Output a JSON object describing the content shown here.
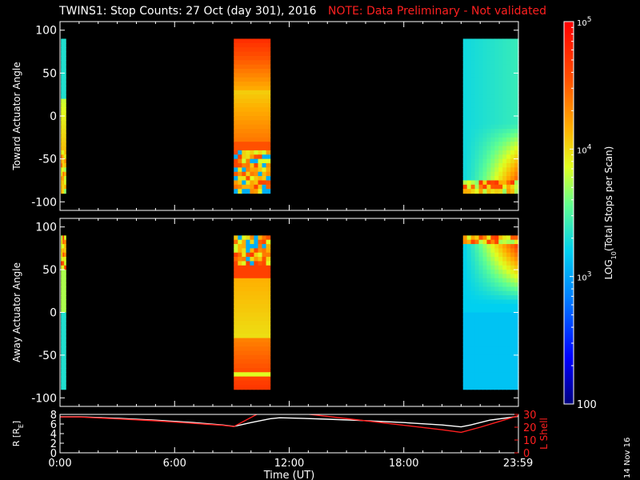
{
  "title": {
    "main": "TWINS1: Stop Counts: 27 Oct (day 301), 2016",
    "note": "NOTE: Data Preliminary - Not validated"
  },
  "footer_date": "14 Nov 16",
  "colors": {
    "background": "#000000",
    "axes": "#ffffff",
    "note": "#ff2020",
    "lshell_line": "#ff2020",
    "radius_line": "#ffffff"
  },
  "chart_data": [
    {
      "type": "heatmap",
      "panel": "toward",
      "ylabel": "Toward Actuator Angle",
      "xlim": [
        0,
        24
      ],
      "ylim": [
        -110,
        110
      ],
      "yticks": [
        -100,
        -50,
        0,
        50,
        100
      ],
      "data_blocks": [
        {
          "t_start": 0.05,
          "t_end": 0.3,
          "a_min": -90,
          "a_max": 90,
          "profile": "edge_toward"
        },
        {
          "t_start": 9.1,
          "t_end": 11.0,
          "a_min": -90,
          "a_max": 90,
          "profile": "mid_toward"
        },
        {
          "t_start": 21.1,
          "t_end": 24.0,
          "a_min": -90,
          "a_max": 90,
          "profile": "late_toward"
        }
      ]
    },
    {
      "type": "heatmap",
      "panel": "away",
      "ylabel": "Away Actuator Angle",
      "xlim": [
        0,
        24
      ],
      "ylim": [
        -110,
        110
      ],
      "yticks": [
        -100,
        -50,
        0,
        50,
        100
      ],
      "data_blocks": [
        {
          "t_start": 0.05,
          "t_end": 0.3,
          "a_min": -90,
          "a_max": 90,
          "profile": "edge_away"
        },
        {
          "t_start": 9.1,
          "t_end": 11.0,
          "a_min": -90,
          "a_max": 90,
          "profile": "mid_away"
        },
        {
          "t_start": 21.1,
          "t_end": 24.0,
          "a_min": -90,
          "a_max": 90,
          "profile": "late_away"
        }
      ]
    },
    {
      "type": "line",
      "panel": "orbit",
      "ylabel_left": "R [R",
      "ylabel_left_sub": "E",
      "ylabel_left_tail": "]",
      "ylabel_right": "L Shell",
      "xlabel": "Time (UT)",
      "xlim": [
        0,
        24
      ],
      "ylim_left": [
        0,
        8
      ],
      "yticks_left": [
        0,
        2,
        4,
        6,
        8
      ],
      "ylim_right": [
        0,
        30
      ],
      "yticks_right": [
        0,
        10,
        20,
        30
      ],
      "xticks": [
        0,
        6,
        12,
        18,
        23.983
      ],
      "xticklabels": [
        "0:00",
        "6:00",
        "12:00",
        "18:00",
        "23:59"
      ],
      "series": [
        {
          "color": "#ffffff",
          "x": [
            0,
            1,
            3,
            5,
            7,
            8.5,
            9.1,
            10,
            11,
            11.5,
            12.5,
            14,
            16,
            18,
            20,
            21,
            21.5,
            22.5,
            24
          ],
          "y": [
            7.5,
            7.5,
            7.2,
            6.8,
            6.3,
            5.8,
            5.5,
            6.3,
            7.1,
            7.3,
            7.2,
            7.0,
            6.7,
            6.3,
            5.8,
            5.4,
            5.8,
            6.8,
            7.6
          ]
        },
        {
          "color": "#ff2020",
          "axis": "right",
          "x": [
            0,
            1,
            3,
            5,
            7,
            8.5,
            9.1,
            10.3,
            11,
            13.1,
            14,
            16,
            18,
            20,
            21,
            22,
            23,
            24
          ],
          "y": [
            28,
            28,
            26.5,
            25,
            23,
            21.5,
            20.5,
            30,
            34,
            30,
            28.5,
            25,
            21.5,
            18,
            16,
            20,
            24.5,
            29
          ]
        }
      ]
    },
    {
      "type": "colorbar",
      "label_prefix": "LOG",
      "label_sub": "10",
      "label_suffix": "(Total Stops per Scan)",
      "range": [
        100,
        100000
      ],
      "scale": "log",
      "ticks": [
        {
          "value": 100,
          "base": "100",
          "exp": ""
        },
        {
          "value": 1000,
          "base": "10",
          "exp": "3"
        },
        {
          "value": 10000,
          "base": "10",
          "exp": "4"
        },
        {
          "value": 100000,
          "base": "10",
          "exp": "5"
        }
      ]
    }
  ]
}
